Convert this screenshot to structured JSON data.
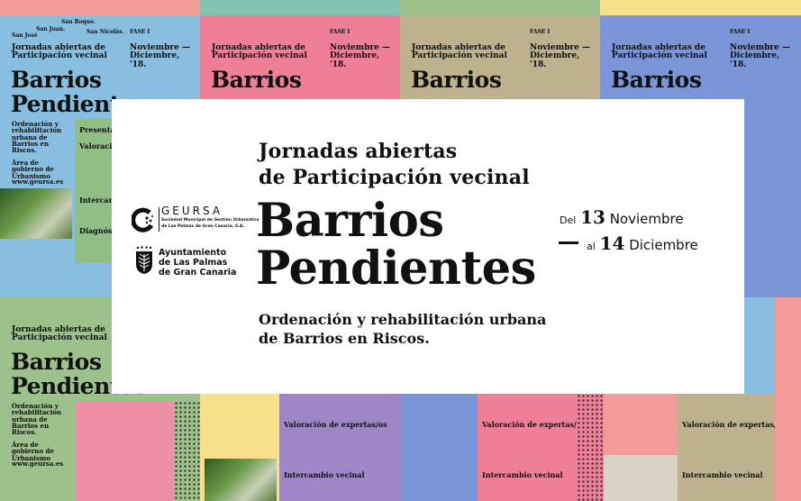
{
  "colors": {
    "blue": "#88bfe0",
    "pink": "#ee7f97",
    "khaki": "#bdb18e",
    "periwinkle": "#7a95d8",
    "green": "#9cc18a",
    "yellow": "#f7e08c",
    "purple": "#9f86c6",
    "salmon": "#f29b98"
  },
  "poster": {
    "places": [
      "San José",
      "San Juan.",
      "San Roque.",
      "San Nicolás."
    ],
    "phase": "FASE I",
    "subtitle": "Jornadas abiertas de Participación vecinal",
    "title1": "Barrios",
    "title2": "Pendientes",
    "dates": "Noviembre — Diciembre, '18.",
    "desc": "Ordenación y rehabilitación urbana de Barrios en Riscos.",
    "org": "Área de gobierno de Urbanismo",
    "web": "www.geursa.es",
    "sessions": [
      "Presentación",
      "Valoración de expertas/os",
      "Intercambio vecinal",
      "Diagnóstico"
    ]
  },
  "card": {
    "heading1": "Jornadas abiertas",
    "heading2": "de Participación vecinal",
    "title1": "Barrios",
    "title2": "Pendientes",
    "desc1": "Ordenación y rehabilitación urbana",
    "desc2": "de Barrios en Riscos.",
    "date_from_prefix": "Del",
    "date_from_day": "13",
    "date_from_month": "Noviembre",
    "date_to_prefix": "al",
    "date_to_day": "14",
    "date_to_month": "Diciembre"
  },
  "logos": {
    "geursa_name": "GEURSA",
    "geursa_sub1": "Sociedad Municipal de Gestión Urbanística",
    "geursa_sub2": "de Las Palmas de Gran Canaria, S.A.",
    "ayto1": "Ayuntamiento",
    "ayto2": "de Las Palmas",
    "ayto3": "de Gran Canaria"
  }
}
